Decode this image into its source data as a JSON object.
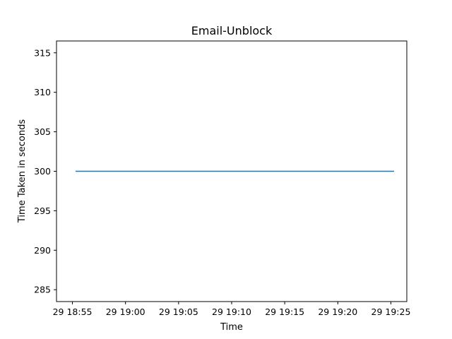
{
  "chart_data": {
    "type": "line",
    "title": "Email-Unblock",
    "xlabel": "Time",
    "ylabel": "Time Taken in seconds",
    "ylim": [
      283.5,
      316.5
    ],
    "xlim": [
      "18:53.5",
      "19:26.5"
    ],
    "x_ticks": [
      {
        "value": "18:55",
        "label": "29 18:55"
      },
      {
        "value": "19:00",
        "label": "29 19:00"
      },
      {
        "value": "19:05",
        "label": "29 19:05"
      },
      {
        "value": "19:10",
        "label": "29 19:10"
      },
      {
        "value": "19:15",
        "label": "29 19:15"
      },
      {
        "value": "19:20",
        "label": "29 19:20"
      },
      {
        "value": "19:25",
        "label": "29 19:25"
      }
    ],
    "y_ticks": [
      285,
      290,
      295,
      300,
      305,
      310,
      315
    ],
    "series": [
      {
        "color": "#1f77b4",
        "points": [
          {
            "x": "18:55.3",
            "y": 300
          },
          {
            "x": "19:25.3",
            "y": 300
          }
        ]
      }
    ],
    "grid": false
  }
}
